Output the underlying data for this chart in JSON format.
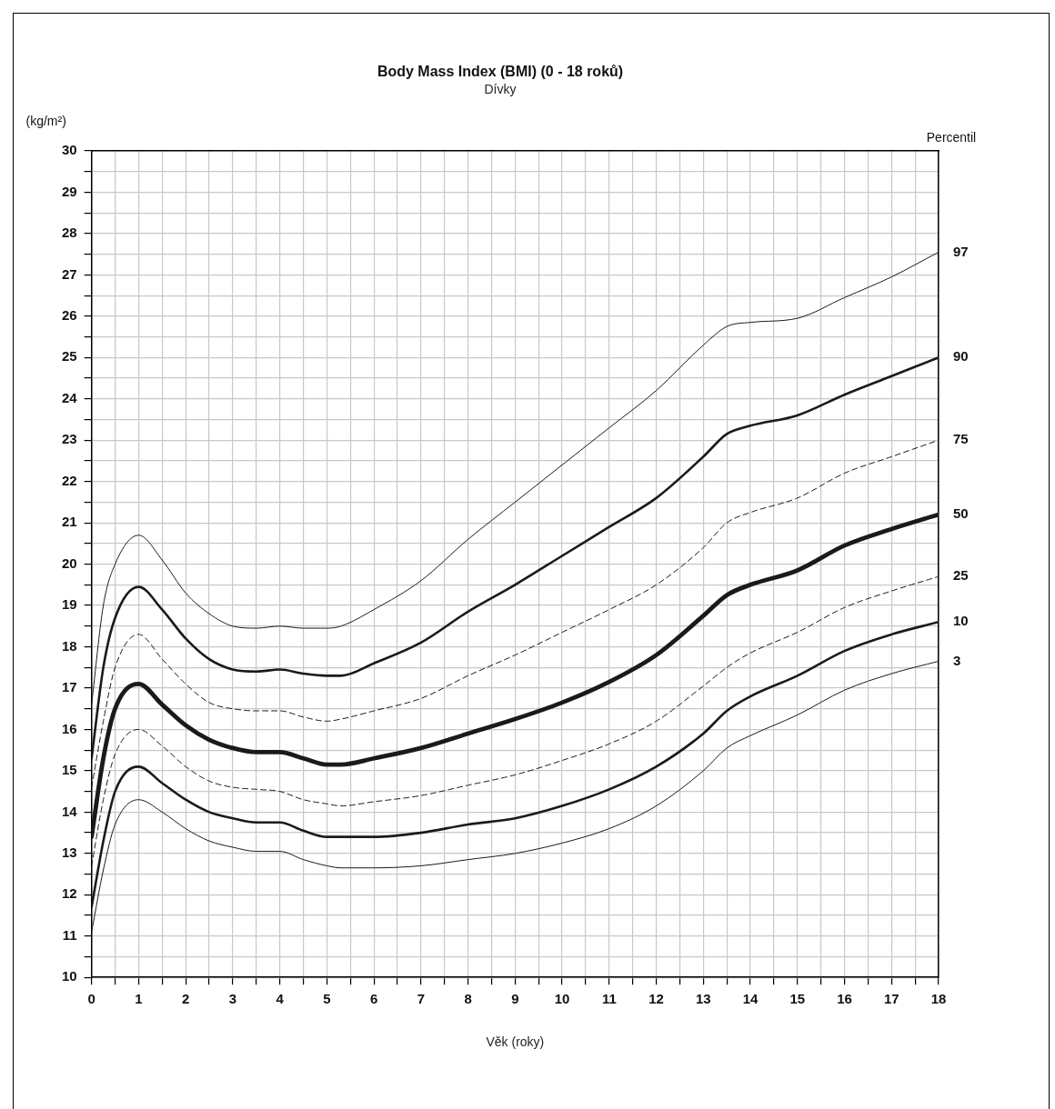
{
  "chart_data": {
    "type": "line",
    "title": "Body Mass Index (BMI) (0 - 18 roků)",
    "subtitle": "Dívky",
    "xlabel": "Věk (roky)",
    "ylabel": "(kg/m²)",
    "legend_title": "Percentil",
    "x": [
      0,
      0.25,
      0.5,
      1,
      1.5,
      2,
      2.5,
      3,
      3.5,
      4,
      4.5,
      5,
      5.3,
      6,
      7,
      8,
      9,
      10,
      11,
      12,
      13,
      13.5,
      14,
      15,
      16,
      17,
      18
    ],
    "series": [
      {
        "name": "97",
        "color": "#1a1a1a",
        "line_style": "solid",
        "values": [
          16.6,
          19.0,
          20.0,
          20.7,
          20.1,
          19.3,
          18.8,
          18.5,
          18.45,
          18.5,
          18.45,
          18.45,
          18.5,
          18.9,
          19.6,
          20.6,
          21.5,
          22.4,
          23.3,
          24.2,
          25.3,
          25.75,
          25.85,
          25.95,
          26.45,
          26.95,
          27.55
        ]
      },
      {
        "name": "90",
        "color": "#1a1a1a",
        "line_style": "solid",
        "values": [
          15.3,
          17.5,
          18.7,
          19.45,
          18.9,
          18.2,
          17.7,
          17.45,
          17.4,
          17.45,
          17.35,
          17.3,
          17.3,
          17.6,
          18.1,
          18.85,
          19.5,
          20.2,
          20.9,
          21.6,
          22.6,
          23.15,
          23.35,
          23.6,
          24.1,
          24.55,
          25.0
        ]
      },
      {
        "name": "75",
        "color": "#1a1a1a",
        "line_style": "dashed",
        "values": [
          14.6,
          16.2,
          17.5,
          18.3,
          17.7,
          17.1,
          16.65,
          16.5,
          16.45,
          16.45,
          16.3,
          16.2,
          16.25,
          16.45,
          16.75,
          17.3,
          17.8,
          18.35,
          18.9,
          19.5,
          20.4,
          21.0,
          21.25,
          21.6,
          22.2,
          22.6,
          23.0
        ]
      },
      {
        "name": "50",
        "color": "#1a1a1a",
        "line_style": "solid",
        "values": [
          13.4,
          15.3,
          16.5,
          17.1,
          16.6,
          16.1,
          15.75,
          15.55,
          15.45,
          15.45,
          15.3,
          15.15,
          15.15,
          15.3,
          15.55,
          15.9,
          16.25,
          16.65,
          17.15,
          17.8,
          18.75,
          19.25,
          19.5,
          19.85,
          20.45,
          20.85,
          21.2
        ]
      },
      {
        "name": "25",
        "color": "#1a1a1a",
        "line_style": "dashed",
        "values": [
          12.7,
          14.3,
          15.4,
          16.0,
          15.6,
          15.1,
          14.75,
          14.6,
          14.55,
          14.5,
          14.3,
          14.2,
          14.15,
          14.25,
          14.4,
          14.65,
          14.9,
          15.25,
          15.65,
          16.2,
          17.05,
          17.5,
          17.85,
          18.35,
          18.95,
          19.35,
          19.7
        ]
      },
      {
        "name": "10",
        "color": "#1a1a1a",
        "line_style": "solid",
        "values": [
          11.7,
          13.3,
          14.5,
          15.1,
          14.7,
          14.3,
          14.0,
          13.85,
          13.75,
          13.75,
          13.55,
          13.4,
          13.4,
          13.4,
          13.5,
          13.7,
          13.85,
          14.15,
          14.55,
          15.1,
          15.9,
          16.45,
          16.8,
          17.3,
          17.9,
          18.3,
          18.6
        ]
      },
      {
        "name": "3",
        "color": "#1a1a1a",
        "line_style": "solid",
        "values": [
          11.1,
          12.6,
          13.7,
          14.3,
          14.0,
          13.6,
          13.3,
          13.15,
          13.05,
          13.05,
          12.85,
          12.7,
          12.65,
          12.65,
          12.7,
          12.85,
          13.0,
          13.25,
          13.6,
          14.15,
          15.0,
          15.55,
          15.85,
          16.35,
          16.95,
          17.35,
          17.65
        ]
      }
    ],
    "xlim": [
      0,
      18
    ],
    "xticks": [
      0,
      {
        "value": 0.5,
        "label": null
      },
      1,
      {
        "value": 1.5,
        "label": null
      },
      2,
      {
        "value": 2.5,
        "label": null
      },
      3,
      {
        "value": 3.5,
        "label": null
      },
      4,
      {
        "value": 4.5,
        "label": null
      },
      5,
      {
        "value": 5.5,
        "label": null
      },
      6,
      {
        "value": 6.5,
        "label": null
      },
      7,
      {
        "value": 7.5,
        "label": null
      },
      8,
      {
        "value": 8.5,
        "label": null
      },
      9,
      {
        "value": 9.5,
        "label": null
      },
      10,
      {
        "value": 10.5,
        "label": null
      },
      11,
      {
        "value": 11.5,
        "label": null
      },
      12,
      {
        "value": 12.5,
        "label": null
      },
      13,
      {
        "value": 13.5,
        "label": null
      },
      14,
      {
        "value": 14.5,
        "label": null
      },
      15,
      {
        "value": 15.5,
        "label": null
      },
      16,
      {
        "value": 16.5,
        "label": null
      },
      17,
      {
        "value": 17.5,
        "label": null
      },
      18
    ],
    "ylim": [
      10,
      30
    ],
    "yticks": [
      10,
      {
        "value": 10.5,
        "label": null
      },
      11,
      {
        "value": 11.5,
        "label": null
      },
      12,
      {
        "value": 12.5,
        "label": null
      },
      13,
      {
        "value": 13.5,
        "label": null
      },
      14,
      {
        "value": 14.5,
        "label": null
      },
      15,
      {
        "value": 15.5,
        "label": null
      },
      16,
      {
        "value": 16.5,
        "label": null
      },
      17,
      {
        "value": 17.5,
        "label": null
      },
      18,
      {
        "value": 18.5,
        "label": null
      },
      19,
      {
        "value": 19.5,
        "label": null
      },
      20,
      {
        "value": 20.5,
        "label": null
      },
      21,
      {
        "value": 21.5,
        "label": null
      },
      22,
      {
        "value": 22.5,
        "label": null
      },
      23,
      {
        "value": 23.5,
        "label": null
      },
      24,
      {
        "value": 24.5,
        "label": null
      },
      25,
      {
        "value": 25.5,
        "label": null
      },
      26,
      {
        "value": 26.5,
        "label": null
      },
      27,
      {
        "value": 27.5,
        "label": null
      },
      28,
      {
        "value": 28.5,
        "label": null
      },
      29,
      {
        "value": 29.5,
        "label": null
      },
      30
    ],
    "grid": true,
    "marker": "none",
    "legend": false
  }
}
